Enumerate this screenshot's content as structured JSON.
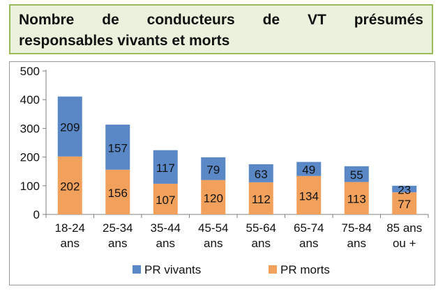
{
  "chart_data": {
    "type": "bar",
    "stacked": true,
    "title_words_line1": [
      "Nombre",
      "de",
      "conducteurs",
      "de",
      "VT",
      "présumés"
    ],
    "title_line2": "responsables vivants et morts",
    "categories": [
      [
        "18-24",
        "ans"
      ],
      [
        "25-34",
        "ans"
      ],
      [
        "35-44",
        "ans"
      ],
      [
        "45-54",
        "ans"
      ],
      [
        "55-64",
        "ans"
      ],
      [
        "65-74",
        "ans"
      ],
      [
        "75-84",
        "ans"
      ],
      [
        "85 ans",
        "ou +"
      ]
    ],
    "series": [
      {
        "name": "PR morts",
        "color": "#f2a15d",
        "values": [
          202,
          156,
          107,
          120,
          112,
          134,
          113,
          77
        ]
      },
      {
        "name": "PR vivants",
        "color": "#5a87c6",
        "values": [
          209,
          157,
          117,
          79,
          63,
          49,
          55,
          23
        ]
      }
    ],
    "legend_order": [
      "PR vivants",
      "PR morts"
    ],
    "yticks": [
      "0",
      "100",
      "200",
      "300",
      "400",
      "500"
    ],
    "ylim": [
      0,
      500
    ],
    "grid": false,
    "legend_position": "bottom"
  }
}
